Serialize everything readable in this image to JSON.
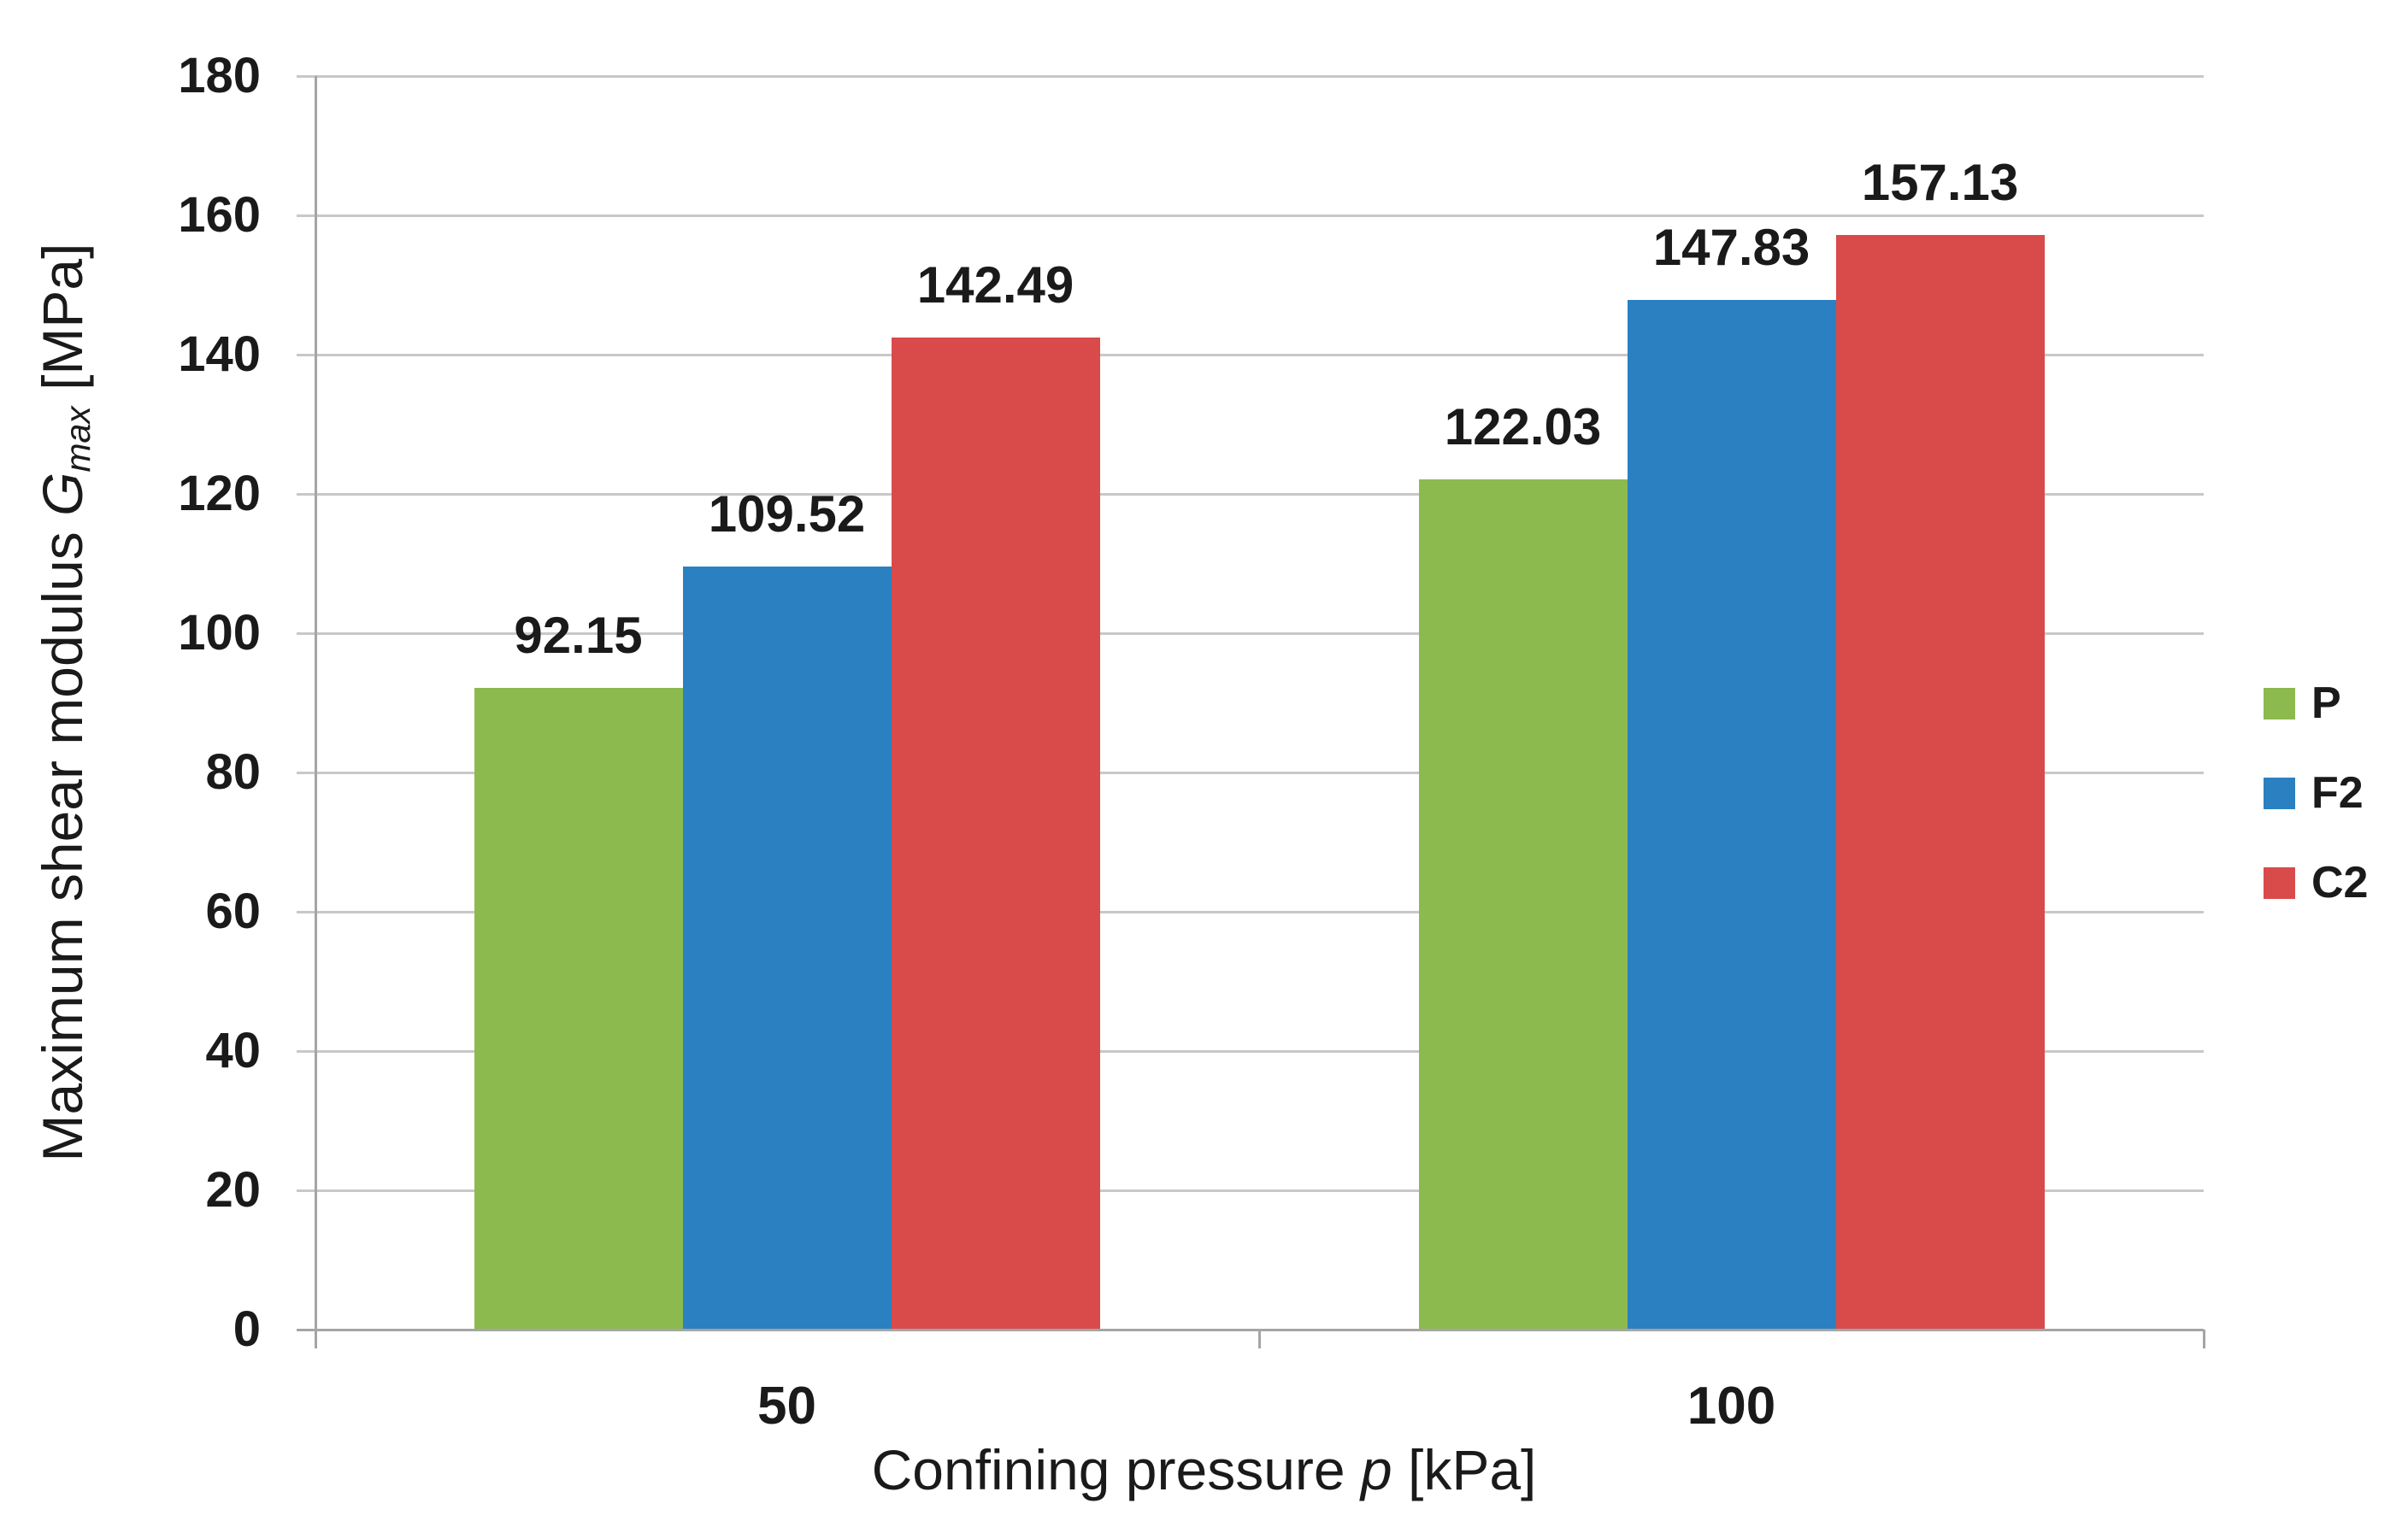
{
  "chart_data": {
    "type": "bar",
    "categories": [
      "50",
      "100"
    ],
    "series": [
      {
        "name": "P",
        "color": "#8CBA4E",
        "values": [
          92.15,
          122.03
        ]
      },
      {
        "name": "F2",
        "color": "#2B80C2",
        "values": [
          109.52,
          147.83
        ]
      },
      {
        "name": "C2",
        "color": "#D94B4A",
        "values": [
          142.49,
          157.13
        ]
      }
    ],
    "data_label_decimals": 2,
    "xlabel": {
      "prefix": "Confining pressure ",
      "symbol": "p",
      "suffix": " [kPa]"
    },
    "ylabel": {
      "prefix": "Maximum shear modulus ",
      "symbol": "G",
      "subscript": "max",
      "suffix": " [MPa]"
    },
    "ylim": [
      0,
      180
    ],
    "ytick_step": 20,
    "grid": true,
    "legend_position": "right",
    "legend_labels": [
      "P",
      "F2",
      "C2"
    ],
    "colors": {
      "gridline": "#C8C8C8",
      "axis": "#A5A5A5",
      "text": "#1A1A1A",
      "background": "#FFFFFF"
    }
  }
}
